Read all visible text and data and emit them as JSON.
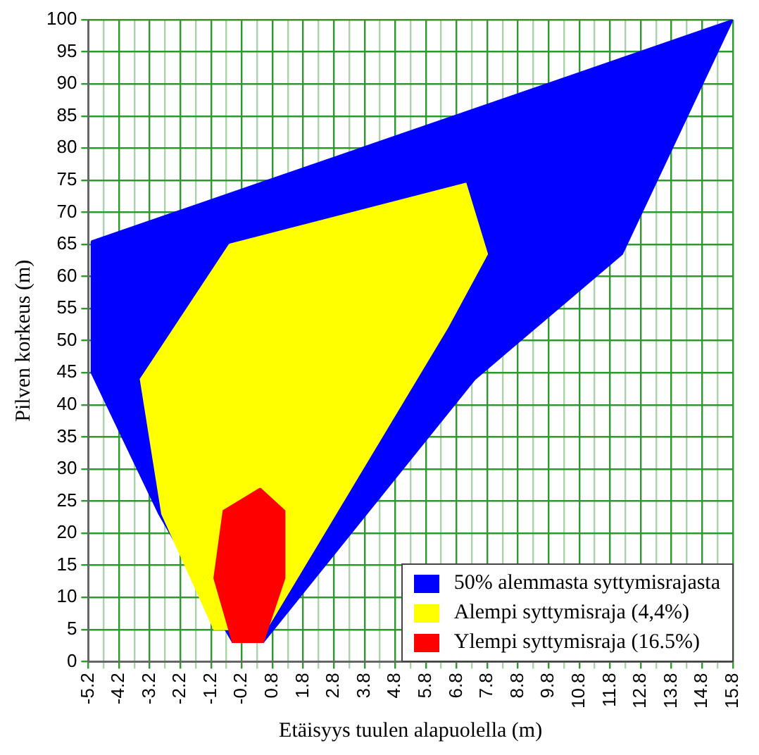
{
  "chart_data": {
    "type": "area",
    "xlabel": "Etäisyys tuulen alapuolella (m)",
    "ylabel": "Pilven korkeus (m)",
    "xlim": [
      -5.2,
      15.8
    ],
    "xticks": [
      -5.2,
      {
        "value": -4.7,
        "label": null
      },
      -4.2,
      {
        "value": -3.7,
        "label": null
      },
      -3.2,
      {
        "value": -2.7,
        "label": null
      },
      -2.2,
      {
        "value": -1.7,
        "label": null
      },
      -1.2,
      {
        "value": -0.7,
        "label": null
      },
      -0.2,
      {
        "value": 0.3,
        "label": null
      },
      0.8,
      {
        "value": 1.3,
        "label": null
      },
      1.8,
      {
        "value": 2.3,
        "label": null
      },
      2.8,
      {
        "value": 3.3,
        "label": null
      },
      3.8,
      {
        "value": 4.3,
        "label": null
      },
      4.8,
      {
        "value": 5.3,
        "label": null
      },
      5.8,
      {
        "value": 6.3,
        "label": null
      },
      6.8,
      {
        "value": 7.3,
        "label": null
      },
      7.8,
      {
        "value": 8.3,
        "label": null
      },
      8.8,
      {
        "value": 9.3,
        "label": null
      },
      9.8,
      {
        "value": 10.3,
        "label": null
      },
      10.8,
      {
        "value": 11.3,
        "label": null
      },
      11.8,
      {
        "value": 12.3,
        "label": null
      },
      12.8,
      {
        "value": 13.3,
        "label": null
      },
      13.8,
      {
        "value": 14.3,
        "label": null
      },
      14.8,
      {
        "value": 15.3,
        "label": null
      },
      15.8
    ],
    "ylim": [
      0,
      100
    ],
    "yticks": [
      0,
      5,
      10,
      15,
      20,
      25,
      30,
      35,
      40,
      45,
      50,
      55,
      60,
      65,
      70,
      75,
      80,
      85,
      90,
      95,
      100
    ],
    "grid": true,
    "legend": "bottom right",
    "marker": "none",
    "series": [
      {
        "name": "50% alemmasta syttymisrajasta",
        "color": "#0000ff",
        "x": [
          -5.1,
          15.8,
          12.2,
          7.4,
          0.5,
          -0.5,
          -2.9,
          -5.1,
          -5.1
        ],
        "values": [
          65.5,
          100,
          63.5,
          44,
          3,
          3,
          23,
          45,
          65.5
        ]
      },
      {
        "name": "Alempi syttymisraja (4,4%)",
        "color": "#ffff00",
        "x": [
          -0.6,
          7.1,
          7.8,
          6.5,
          0.6,
          -1.1,
          -2.8,
          -3.5,
          -0.6
        ],
        "values": [
          65,
          74.5,
          63.5,
          52,
          5,
          5,
          23,
          44,
          65
        ]
      },
      {
        "name": "Ylempi syttymisraja (16.5%)",
        "color": "#ff0000",
        "x": [
          0.4,
          1.2,
          1.2,
          0.5,
          -0.5,
          -1.1,
          -0.8,
          0.4
        ],
        "values": [
          27,
          23.5,
          13,
          3,
          3,
          13,
          23.5,
          27
        ]
      }
    ]
  }
}
